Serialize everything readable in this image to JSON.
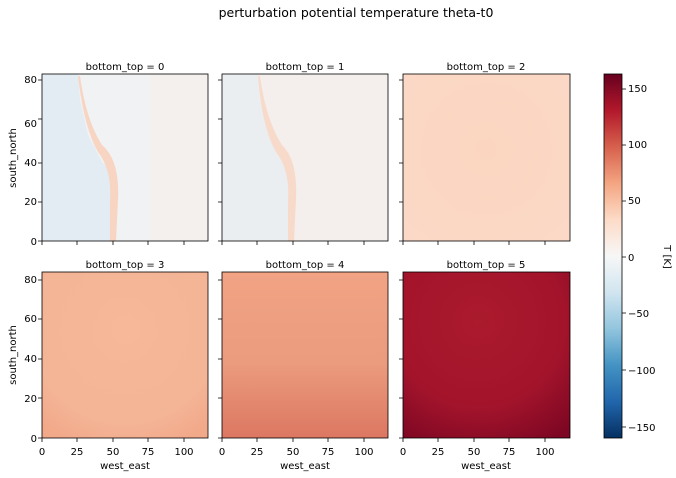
{
  "figure": {
    "suptitle": "perturbation potential temperature theta-t0"
  },
  "chart_data": {
    "type": "heatmap",
    "title": "perturbation potential temperature theta-t0",
    "facet_variable": "bottom_top",
    "panels": [
      {
        "title": "bottom_top = 0",
        "approx_mean_value": 8
      },
      {
        "title": "bottom_top = 1",
        "approx_mean_value": 12
      },
      {
        "title": "bottom_top = 2",
        "approx_mean_value": 28
      },
      {
        "title": "bottom_top = 3",
        "approx_mean_value": 40
      },
      {
        "title": "bottom_top = 4",
        "approx_mean_value": 55
      },
      {
        "title": "bottom_top = 5",
        "approx_mean_value": 128
      }
    ],
    "xlabel": "west_east",
    "ylabel": "south_north",
    "xlim": [
      0,
      118
    ],
    "ylim": [
      0,
      85
    ],
    "xticks": [
      0,
      25,
      50,
      75,
      100
    ],
    "yticks": [
      0,
      20,
      40,
      60,
      80
    ],
    "colorbar": {
      "label": "T [K]",
      "range": [
        -160,
        160
      ],
      "ticks": [
        -150,
        -100,
        -50,
        0,
        50,
        100,
        150
      ],
      "tick_labels": [
        "−150",
        "−100",
        "−50",
        "0",
        "50",
        "100",
        "150"
      ],
      "colormap": "RdBu_r"
    }
  }
}
